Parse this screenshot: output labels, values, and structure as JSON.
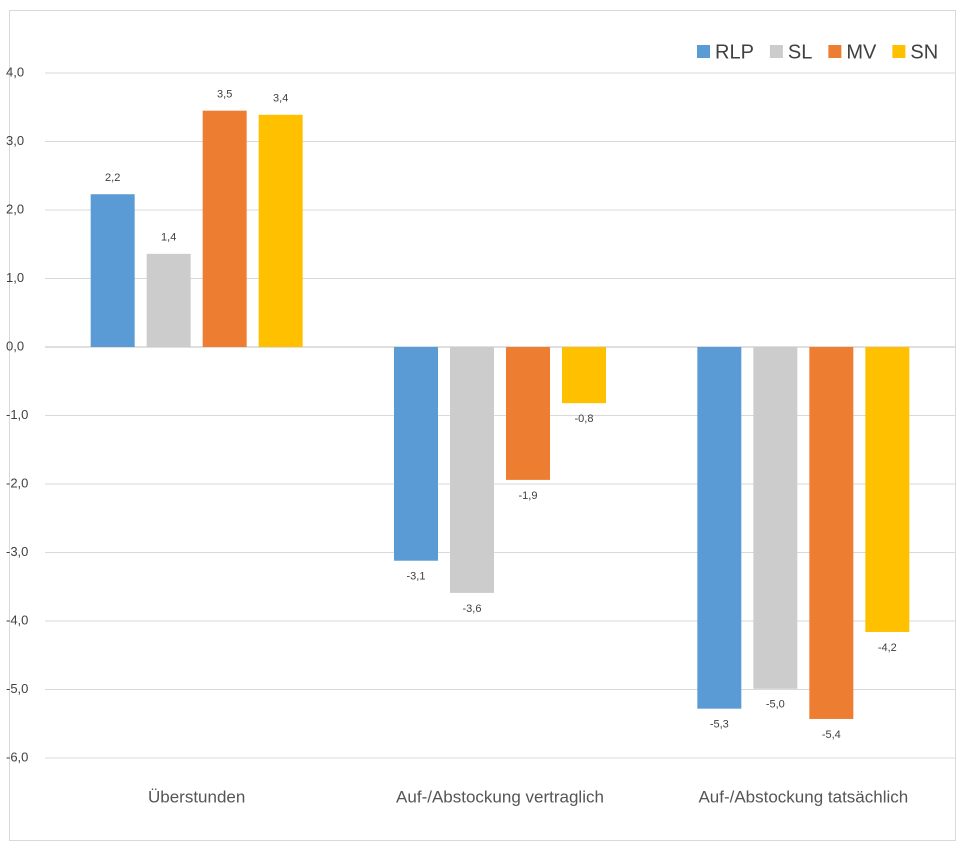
{
  "chart_data": {
    "type": "bar",
    "categories": [
      "Überstunden",
      "Auf-/Abstockung vertraglich",
      "Auf-/Abstockung tatsächlich"
    ],
    "series": [
      {
        "name": "RLP",
        "color": "#5b9bd5",
        "values": [
          2.23,
          -3.12,
          -5.28
        ],
        "value_labels": [
          "2,2",
          "-3,1",
          "-5,3"
        ]
      },
      {
        "name": "SL",
        "color": "#cccccc",
        "values": [
          1.36,
          -3.59,
          -4.99
        ],
        "value_labels": [
          "1,4",
          "-3,6",
          "-5,0"
        ]
      },
      {
        "name": "MV",
        "color": "#ed7d31",
        "values": [
          3.45,
          -1.94,
          -5.43
        ],
        "value_labels": [
          "3,5",
          "-1,9",
          "-5,4"
        ]
      },
      {
        "name": "SN",
        "color": "#ffc000",
        "values": [
          3.39,
          -0.82,
          -4.16
        ],
        "value_labels": [
          "3,4",
          "-0,8",
          "-4,2"
        ]
      }
    ],
    "ylim": [
      -6,
      4
    ],
    "yticks": [
      {
        "value": -6,
        "label": "-6,0"
      },
      {
        "value": -5,
        "label": "-5,0"
      },
      {
        "value": -4,
        "label": "-4,0"
      },
      {
        "value": -3,
        "label": "-3,0"
      },
      {
        "value": -2,
        "label": "-2,0"
      },
      {
        "value": -1,
        "label": "-1,0"
      },
      {
        "value": 0,
        "label": "0,0"
      },
      {
        "value": 1,
        "label": "1,0"
      },
      {
        "value": 2,
        "label": "2,0"
      },
      {
        "value": 3,
        "label": "3,0"
      },
      {
        "value": 4,
        "label": "4,0"
      }
    ],
    "grid": true,
    "legend": "top-right"
  }
}
